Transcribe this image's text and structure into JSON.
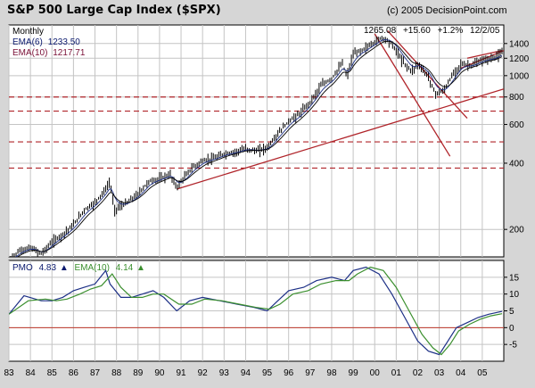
{
  "title": "S&P 500 Large Cap Index ($SPX)",
  "copyright": "(c) 2005 DecisionPoint.com",
  "period": "Monthly",
  "ema_short": {
    "label": "EMA(6)",
    "value": "1233.50",
    "color": "#0b1a6e"
  },
  "ema_long": {
    "label": "EMA(10)",
    "value": "1217.71",
    "color": "#7a1037"
  },
  "last_quote": {
    "close": "1265.08",
    "change": "+15.60",
    "pct": "+1.2%",
    "date": "12/2/05"
  },
  "colors": {
    "background": "#d6d6d6",
    "panel": "#ffffff",
    "grid": "#c4c4c4",
    "price": "#000000",
    "trendline": "#b0242a",
    "pmo": "#1c2f86",
    "pmo_signal": "#3b8f2e",
    "zero_line": "#c0392b"
  },
  "chart_data": [
    {
      "type": "line",
      "title": "S&P 500 Large Cap Index ($SPX)",
      "scale": "log",
      "ylim": [
        150,
        1700
      ],
      "xlim": [
        1983.0,
        2006.0
      ],
      "y_ticks": [
        200,
        400,
        600,
        800,
        1000,
        1200,
        1400
      ],
      "x_tick_labels": [
        "83",
        "84",
        "85",
        "86",
        "87",
        "88",
        "89",
        "90",
        "91",
        "92",
        "93",
        "94",
        "95",
        "96",
        "97",
        "98",
        "99",
        "00",
        "01",
        "02",
        "03",
        "04",
        "05"
      ],
      "grid": true,
      "series": [
        {
          "name": "$SPX",
          "x": [
            1983.0,
            1983.5,
            1984.0,
            1984.5,
            1985.0,
            1985.5,
            1986.0,
            1986.5,
            1987.0,
            1987.5,
            1987.7,
            1987.9,
            1988.5,
            1989.0,
            1989.5,
            1990.0,
            1990.5,
            1990.8,
            1991.0,
            1991.5,
            1992.0,
            1992.5,
            1993.0,
            1993.5,
            1994.0,
            1994.5,
            1995.0,
            1995.5,
            1996.0,
            1996.5,
            1997.0,
            1997.5,
            1998.0,
            1998.5,
            1998.7,
            1999.0,
            1999.5,
            2000.0,
            2000.3,
            2000.7,
            2001.0,
            2001.3,
            2001.7,
            2002.0,
            2002.5,
            2002.8,
            2003.2,
            2003.6,
            2004.0,
            2004.5,
            2005.0,
            2005.5,
            2005.92
          ],
          "values": [
            145,
            160,
            165,
            155,
            175,
            190,
            210,
            245,
            265,
            305,
            330,
            245,
            265,
            290,
            330,
            340,
            355,
            310,
            330,
            380,
            410,
            420,
            440,
            450,
            465,
            455,
            470,
            545,
            620,
            670,
            760,
            900,
            970,
            1140,
            990,
            1250,
            1320,
            1420,
            1490,
            1430,
            1300,
            1160,
            1050,
            1130,
            990,
            830,
            850,
            1000,
            1130,
            1110,
            1180,
            1200,
            1265
          ]
        },
        {
          "name": "EMA(6)",
          "values": []
        },
        {
          "name": "EMA(10)",
          "values": []
        }
      ],
      "horizontal_lines": [
        380,
        500,
        690,
        800
      ],
      "trendlines": [
        {
          "x": [
            1990.8,
            2006.0
          ],
          "y": [
            305,
            870
          ]
        },
        {
          "x": [
            2000.0,
            2003.5
          ],
          "y": [
            1550,
            430
          ]
        },
        {
          "x": [
            2000.6,
            2004.3
          ],
          "y": [
            1600,
            640
          ]
        },
        {
          "x": [
            2004.0,
            2006.0
          ],
          "y": [
            1080,
            1300
          ]
        },
        {
          "x": [
            2004.3,
            2005.9
          ],
          "y": [
            1200,
            1300
          ]
        }
      ]
    },
    {
      "type": "line",
      "title": "PMO",
      "ylim": [
        -10,
        20
      ],
      "xlim": [
        1983.0,
        2006.0
      ],
      "y_ticks": [
        -5,
        0,
        5,
        10,
        15
      ],
      "grid": true,
      "series": [
        {
          "name": "PMO",
          "value": "4.83",
          "x": [
            1983.0,
            1983.7,
            1984.5,
            1985.0,
            1985.5,
            1986.0,
            1986.5,
            1987.0,
            1987.5,
            1987.7,
            1988.2,
            1988.7,
            1989.2,
            1989.7,
            1990.2,
            1990.8,
            1991.4,
            1992.0,
            1992.8,
            1993.6,
            1994.4,
            1995.0,
            1995.5,
            1996.0,
            1996.7,
            1997.3,
            1998.0,
            1998.6,
            1999.0,
            1999.6,
            2000.2,
            2000.8,
            2001.4,
            2002.0,
            2002.5,
            2003.0,
            2003.4,
            2003.8,
            2004.3,
            2004.8,
            2005.3,
            2005.92
          ],
          "values": [
            4,
            9.5,
            8,
            8,
            9,
            11,
            12,
            13,
            17,
            13,
            9,
            9,
            10,
            11,
            9,
            5,
            8,
            9,
            8,
            7,
            6,
            5,
            8,
            11,
            12,
            14,
            15,
            14,
            17,
            18,
            16,
            10,
            3,
            -4,
            -7,
            -8,
            -4,
            0,
            1.5,
            3,
            4,
            4.83
          ]
        },
        {
          "name": "EMA(10)",
          "value": "4.14",
          "x": [
            1983.0,
            1983.9,
            1984.7,
            1985.2,
            1985.7,
            1986.3,
            1986.8,
            1987.3,
            1987.8,
            1988.2,
            1988.7,
            1989.2,
            1989.7,
            1990.2,
            1990.9,
            1991.5,
            1992.1,
            1992.9,
            1993.7,
            1994.5,
            1995.1,
            1995.6,
            1996.2,
            1996.9,
            1997.5,
            1998.2,
            1998.8,
            1999.2,
            1999.8,
            2000.4,
            2001.0,
            2001.6,
            2002.2,
            2002.7,
            2003.1,
            2003.5,
            2003.9,
            2004.4,
            2004.9,
            2005.4,
            2005.92
          ],
          "values": [
            4,
            8,
            8.5,
            8,
            8.5,
            10,
            11.5,
            12.5,
            16,
            12,
            9,
            9,
            10,
            10,
            7,
            7,
            8.5,
            8,
            7,
            6,
            5.5,
            7,
            10,
            11,
            13,
            14,
            14,
            16,
            18,
            17,
            12,
            5,
            -2,
            -6,
            -8,
            -5,
            -1,
            1,
            2.5,
            3.5,
            4.14
          ]
        }
      ]
    }
  ]
}
